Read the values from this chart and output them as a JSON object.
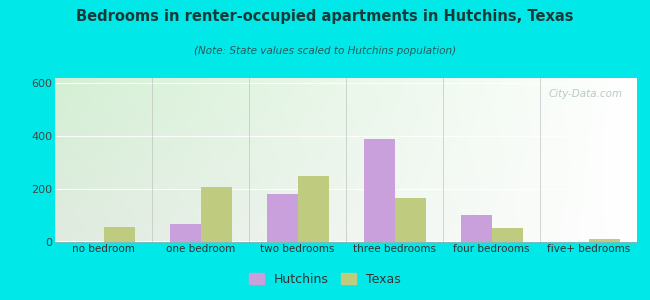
{
  "categories": [
    "no bedroom",
    "one bedroom",
    "two bedrooms",
    "three bedrooms",
    "four bedrooms",
    "five+ bedrooms"
  ],
  "hutchins_values": [
    0,
    65,
    180,
    390,
    100,
    0
  ],
  "texas_values": [
    55,
    205,
    250,
    165,
    50,
    10
  ],
  "hutchins_color": "#c9a0dc",
  "texas_color": "#bfcc80",
  "title": "Bedrooms in renter-occupied apartments in Hutchins, Texas",
  "subtitle": "(Note: State values scaled to Hutchins population)",
  "ylim": [
    0,
    620
  ],
  "yticks": [
    0,
    200,
    400,
    600
  ],
  "bg_outer": "#00e8e8",
  "legend_hutchins": "Hutchins",
  "legend_texas": "Texas",
  "bar_width": 0.32,
  "title_color": "#1a3a3a",
  "subtitle_color": "#2a5a5a"
}
